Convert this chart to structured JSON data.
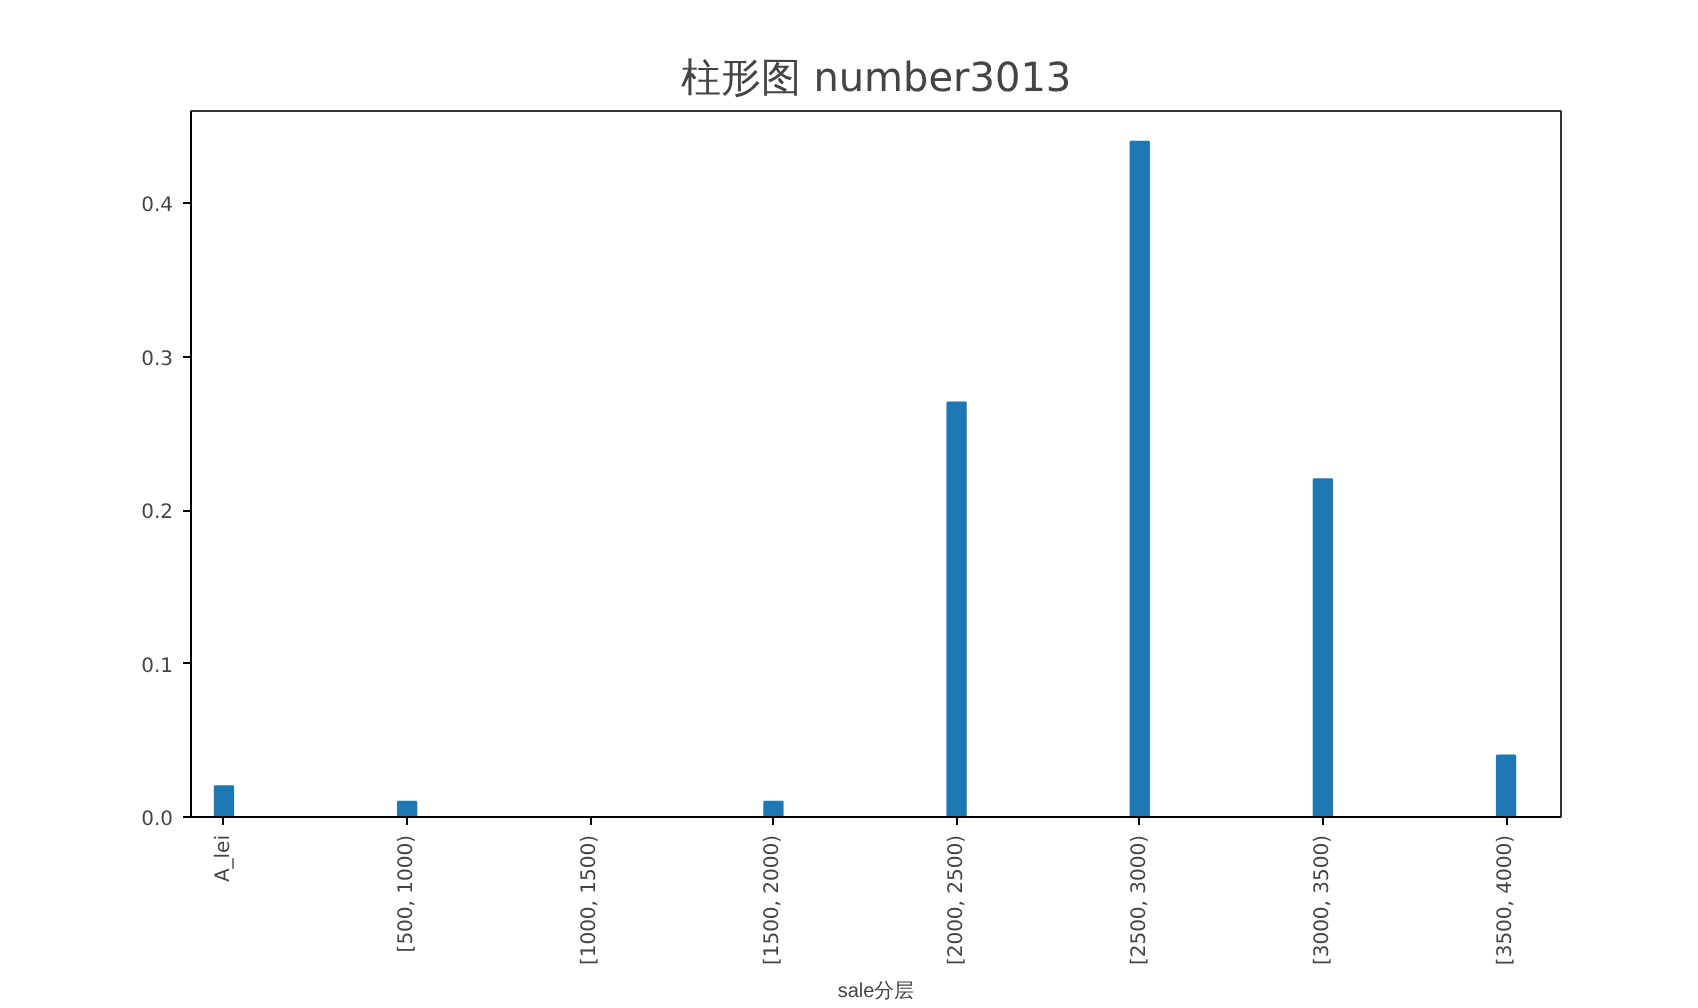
{
  "chart_data": {
    "type": "bar",
    "title": "柱形图 number3013",
    "xlabel": "sale分层",
    "categories": [
      "A_lei",
      "[500, 1000)",
      "[1000, 1500)",
      "[1500, 2000)",
      "[2000, 2500)",
      "[2500, 3000)",
      "[3000, 3500)",
      "[3500, 4000)"
    ],
    "values": [
      0.02,
      0.01,
      0,
      0.01,
      0.27,
      0.44,
      0.22,
      0.04
    ],
    "color": "#1f77b4",
    "ylim": [
      0,
      0.46
    ],
    "yticks": [
      {
        "value": 0,
        "label": "0.0"
      },
      0.1,
      0.2,
      0.3,
      0.4
    ],
    "grid": false
  }
}
